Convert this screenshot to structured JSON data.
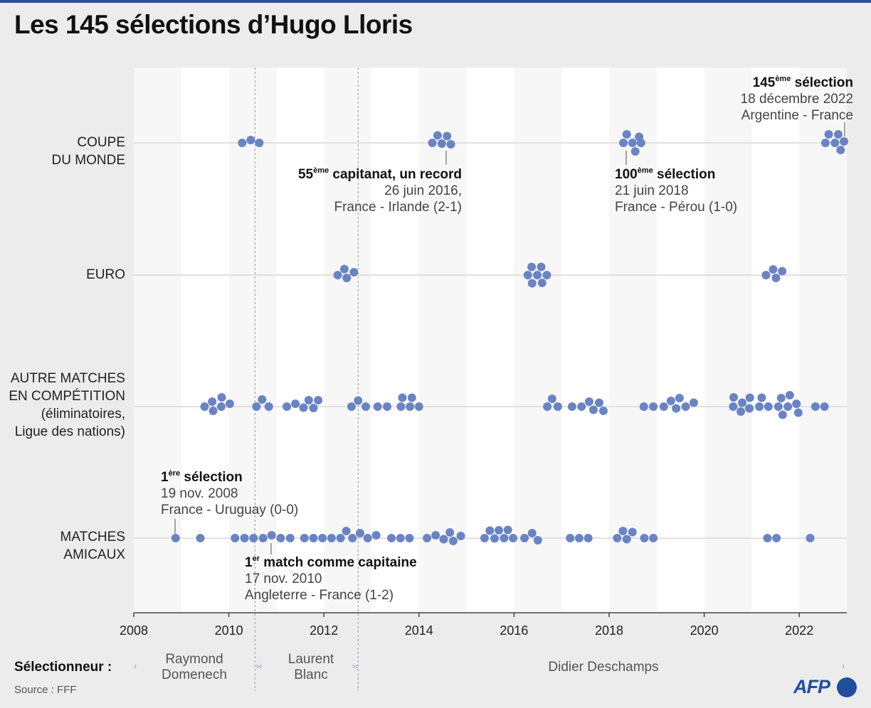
{
  "title": "Les 145 sélections d’Hugo Lloris",
  "colors": {
    "dot": "#6a84c3",
    "band": "#f7f7f7",
    "plot": "#ffffff",
    "brand": "#1f4e9c"
  },
  "rows": [
    {
      "id": "wc",
      "label_lines": [
        "COUPE",
        "DU MONDE"
      ]
    },
    {
      "id": "euro",
      "label_lines": [
        "EURO"
      ]
    },
    {
      "id": "other",
      "label_lines": [
        "AUTRE MATCHES",
        "EN COMPÉTITION",
        "(éliminatoires,",
        "Ligue des nations)"
      ]
    },
    {
      "id": "friendly",
      "label_lines": [
        "MATCHES",
        "AMICAUX"
      ]
    }
  ],
  "chart_data": {
    "type": "scatter",
    "title": "Les 145 sélections d’Hugo Lloris",
    "xlabel": "",
    "ylabel": "",
    "xlim": [
      2008,
      2023
    ],
    "x_ticks": [
      "2008",
      "2010",
      "2012",
      "2014",
      "2016",
      "2018",
      "2020",
      "2022"
    ],
    "series": [
      {
        "name": "COUPE DU MONDE",
        "row": "wc",
        "x": [
          2010.28,
          2010.46,
          2010.64,
          2014.28,
          2014.39,
          2014.48,
          2014.59,
          2014.67,
          2018.3,
          2018.37,
          2018.49,
          2018.55,
          2018.63,
          2018.67,
          2022.55,
          2022.62,
          2022.75,
          2022.82,
          2022.87,
          2022.94
        ]
      },
      {
        "name": "EURO",
        "row": "euro",
        "x": [
          2012.29,
          2012.43,
          2012.48,
          2012.63,
          2016.29,
          2016.37,
          2016.38,
          2016.49,
          2016.57,
          2016.59,
          2016.69,
          2021.3,
          2021.45,
          2021.51,
          2021.64
        ]
      },
      {
        "name": "AUTRE MATCHES EN COMPÉTITION",
        "row": "other",
        "x": [
          2009.49,
          2009.65,
          2009.67,
          2009.84,
          2009.85,
          2010.02,
          2010.58,
          2010.7,
          2010.84,
          2011.22,
          2011.4,
          2011.57,
          2011.68,
          2011.78,
          2011.88,
          2012.58,
          2012.72,
          2012.88,
          2013.13,
          2013.33,
          2013.62,
          2013.65,
          2013.81,
          2013.85,
          2014.0,
          2016.7,
          2016.8,
          2016.92,
          2017.22,
          2017.42,
          2017.58,
          2017.67,
          2017.79,
          2017.88,
          2018.73,
          2018.93,
          2019.15,
          2019.3,
          2019.41,
          2019.48,
          2019.61,
          2019.78,
          2020.61,
          2020.62,
          2020.77,
          2020.8,
          2020.95,
          2020.96,
          2021.16,
          2021.21,
          2021.35,
          2021.56,
          2021.62,
          2021.65,
          2021.76,
          2021.8,
          2021.94,
          2021.98,
          2022.34,
          2022.53
        ]
      },
      {
        "name": "MATCHES AMICAUX",
        "row": "friendly",
        "x": [
          2008.88,
          2009.4,
          2010.13,
          2010.33,
          2010.52,
          2010.72,
          2010.9,
          2011.09,
          2011.29,
          2011.59,
          2011.78,
          2011.97,
          2012.16,
          2012.35,
          2012.47,
          2012.6,
          2012.76,
          2012.92,
          2013.1,
          2013.42,
          2013.61,
          2013.8,
          2014.17,
          2014.35,
          2014.52,
          2014.65,
          2014.72,
          2014.88,
          2015.38,
          2015.49,
          2015.59,
          2015.68,
          2015.79,
          2015.87,
          2015.98,
          2016.22,
          2016.38,
          2016.5,
          2017.18,
          2017.37,
          2017.56,
          2018.17,
          2018.29,
          2018.37,
          2018.49,
          2018.74,
          2018.93,
          2021.33,
          2021.52,
          2022.23
        ]
      }
    ],
    "manager_changes": [
      2010.55,
      2012.72
    ]
  },
  "annotations": {
    "first": {
      "num": "1",
      "sup": "ère",
      "head": " sélection",
      "line1": "19 nov. 2008",
      "line2": "France - Uruguay (0-0)"
    },
    "captain": {
      "num": "1",
      "sup": "er",
      "head": " match comme capitaine",
      "line1": "17 nov. 2010",
      "line2": "Angleterre - France (1-2)"
    },
    "record": {
      "num": "55",
      "sup": "ème",
      "head": " capitanat, un record",
      "line1": "26 juin 2016,",
      "line2": "France - Irlande (2-1)"
    },
    "hundred": {
      "num": "100",
      "sup": "ème",
      "head": " sélection",
      "line1": "21 juin 2018",
      "line2": "France - Pérou (1-0)"
    },
    "last": {
      "num": "145",
      "sup": "ème",
      "head": " sélection",
      "line1": "18 décembre 2022",
      "line2": "Argentine - France"
    }
  },
  "footer": {
    "selector_label": "Sélectionneur :",
    "managers": [
      {
        "line1": "Raymond",
        "line2": "Domenech"
      },
      {
        "line1": "Laurent",
        "line2": "Blanc"
      },
      {
        "line1": "Didier Deschamps",
        "line2": ""
      }
    ],
    "source": "Source : FFF",
    "logo": "AFP"
  }
}
